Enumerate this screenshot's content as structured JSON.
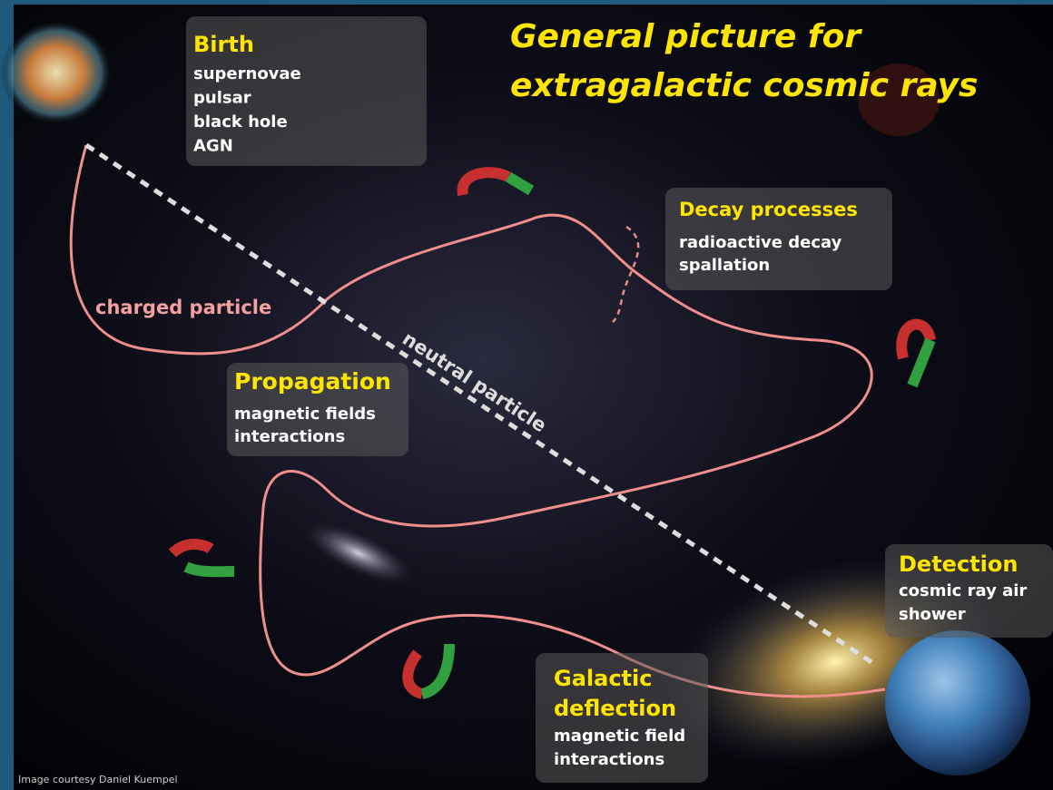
{
  "title": {
    "lines": [
      "General picture for",
      "extragalactic cosmic rays"
    ]
  },
  "boxes": [
    {
      "title": [
        "Birth"
      ],
      "items": [
        "supernovae",
        "pulsar",
        "black hole",
        "AGN"
      ]
    },
    {
      "title": [
        "Decay processes"
      ],
      "items": [
        "radioactive decay",
        "spallation"
      ]
    },
    {
      "title": [
        "Propagation"
      ],
      "items": [
        "magnetic fields",
        "interactions"
      ]
    },
    {
      "title": [
        "Detection"
      ],
      "items": [
        "cosmic ray air",
        "shower"
      ]
    },
    {
      "title": [
        "Galactic",
        "deflection"
      ],
      "items": [
        "magnetic field",
        "interactions"
      ]
    }
  ],
  "labels": {
    "charged": "charged particle",
    "neutral": "neutral particle"
  },
  "credit": "Image courtesy Daniel Kuempel"
}
